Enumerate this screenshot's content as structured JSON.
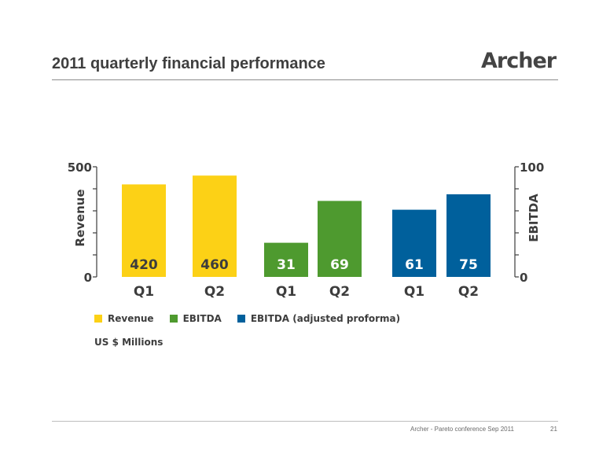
{
  "slide": {
    "title": "2011 quarterly financial performance",
    "logo": "Archer"
  },
  "footer": {
    "text": "Archer - Pareto conference Sep 2011",
    "page": "21"
  },
  "colors": {
    "revenue": "#FCD116",
    "ebitda": "#4E9A2F",
    "ebitda_adjusted": "#00609C",
    "axis": "#3d3d3d"
  },
  "chart_data": {
    "type": "bar",
    "title": "",
    "y_left": {
      "label": "Revenue",
      "range": [
        0,
        500
      ],
      "tick_labels": [
        "0",
        "500"
      ]
    },
    "y_right": {
      "label": "EBITDA",
      "range": [
        0,
        100
      ],
      "tick_labels": [
        "0",
        "100"
      ]
    },
    "series": [
      {
        "name": "Revenue",
        "axis": "left",
        "color": "#FCD116",
        "categories": [
          "Q1",
          "Q2"
        ],
        "values": [
          420,
          460
        ],
        "value_labels": [
          "420",
          "460"
        ]
      },
      {
        "name": "EBITDA",
        "axis": "right",
        "color": "#4E9A2F",
        "categories": [
          "Q1",
          "Q2"
        ],
        "values": [
          31,
          69
        ],
        "value_labels": [
          "31",
          "69"
        ]
      },
      {
        "name": "EBITDA (adjusted proforma)",
        "axis": "right",
        "color": "#00609C",
        "categories": [
          "Q1",
          "Q2"
        ],
        "values": [
          61,
          75
        ],
        "value_labels": [
          "61",
          "75"
        ]
      }
    ],
    "legend": {
      "position": "bottom-left",
      "items": [
        "Revenue",
        "EBITDA",
        "EBITDA (adjusted proforma)"
      ]
    },
    "units_note": "US $ Millions",
    "grid": false
  }
}
